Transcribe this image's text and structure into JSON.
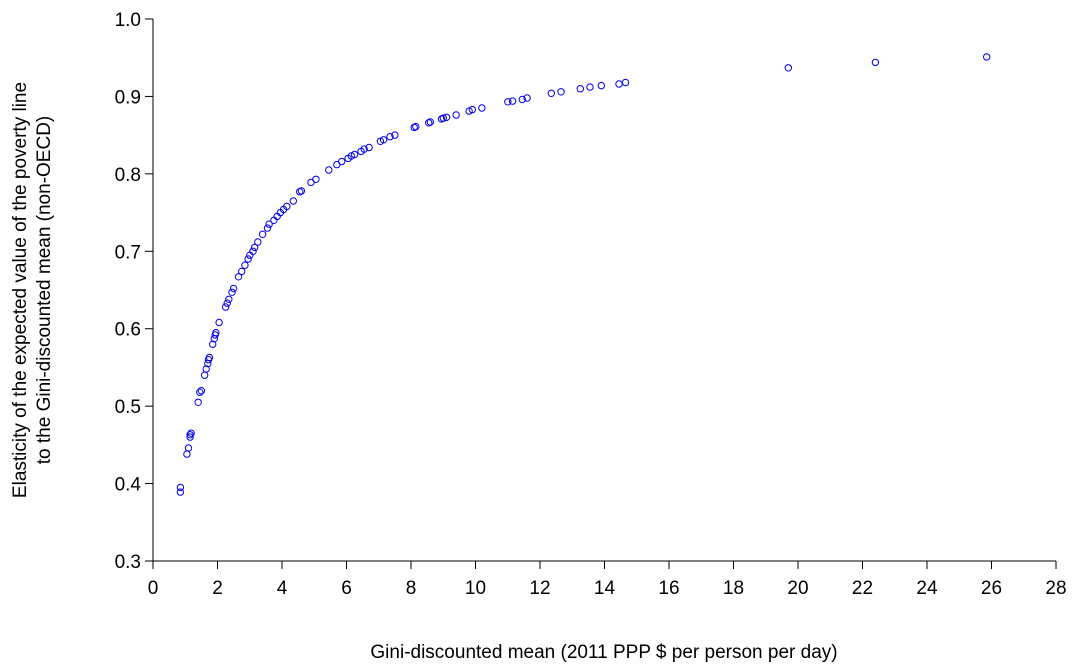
{
  "chart_data": {
    "type": "scatter",
    "title": "",
    "xlabel": "Gini-discounted mean (2011 PPP $ per person per day)",
    "ylabel": [
      "Elasticity of the expected value of the poverty line",
      "to the Gini-discounted mean (non-OECD)"
    ],
    "xlim": [
      0,
      28
    ],
    "ylim": [
      0.3,
      1.0
    ],
    "xticks": [
      "0",
      "2",
      "4",
      "6",
      "8",
      "10",
      "12",
      "14",
      "16",
      "18",
      "20",
      "22",
      "24",
      "26",
      "28"
    ],
    "yticks": [
      "0.3",
      "0.4",
      "0.5",
      "0.6",
      "0.7",
      "0.8",
      "0.9",
      "1.0"
    ],
    "grid": false,
    "marker": "open-circle",
    "colors": {
      "points": "#0000ee",
      "axes": "#000000"
    },
    "series": [
      {
        "points": [
          [
            0.85,
            0.395
          ],
          [
            0.85,
            0.389
          ],
          [
            1.05,
            0.438
          ],
          [
            1.1,
            0.446
          ],
          [
            1.15,
            0.46
          ],
          [
            1.15,
            0.463
          ],
          [
            1.18,
            0.465
          ],
          [
            1.4,
            0.505
          ],
          [
            1.45,
            0.518
          ],
          [
            1.5,
            0.52
          ],
          [
            1.6,
            0.54
          ],
          [
            1.65,
            0.548
          ],
          [
            1.7,
            0.555
          ],
          [
            1.72,
            0.56
          ],
          [
            1.75,
            0.563
          ],
          [
            1.85,
            0.58
          ],
          [
            1.9,
            0.587
          ],
          [
            1.93,
            0.592
          ],
          [
            1.95,
            0.595
          ],
          [
            2.05,
            0.608
          ],
          [
            2.25,
            0.628
          ],
          [
            2.3,
            0.633
          ],
          [
            2.35,
            0.638
          ],
          [
            2.45,
            0.647
          ],
          [
            2.5,
            0.652
          ],
          [
            2.65,
            0.667
          ],
          [
            2.75,
            0.674
          ],
          [
            2.85,
            0.682
          ],
          [
            2.95,
            0.69
          ],
          [
            3.0,
            0.695
          ],
          [
            3.1,
            0.7
          ],
          [
            3.15,
            0.705
          ],
          [
            3.25,
            0.712
          ],
          [
            3.4,
            0.722
          ],
          [
            3.55,
            0.73
          ],
          [
            3.6,
            0.735
          ],
          [
            3.75,
            0.74
          ],
          [
            3.85,
            0.745
          ],
          [
            3.95,
            0.75
          ],
          [
            4.05,
            0.754
          ],
          [
            4.15,
            0.758
          ],
          [
            4.35,
            0.765
          ],
          [
            4.55,
            0.777
          ],
          [
            4.6,
            0.778
          ],
          [
            4.9,
            0.789
          ],
          [
            5.05,
            0.793
          ],
          [
            5.45,
            0.805
          ],
          [
            5.7,
            0.812
          ],
          [
            5.85,
            0.816
          ],
          [
            6.05,
            0.82
          ],
          [
            6.15,
            0.823
          ],
          [
            6.25,
            0.825
          ],
          [
            6.45,
            0.829
          ],
          [
            6.55,
            0.832
          ],
          [
            6.7,
            0.834
          ],
          [
            7.05,
            0.842
          ],
          [
            7.15,
            0.844
          ],
          [
            7.35,
            0.848
          ],
          [
            7.5,
            0.85
          ],
          [
            8.1,
            0.86
          ],
          [
            8.15,
            0.861
          ],
          [
            8.55,
            0.866
          ],
          [
            8.6,
            0.867
          ],
          [
            8.95,
            0.871
          ],
          [
            9.0,
            0.872
          ],
          [
            9.1,
            0.873
          ],
          [
            9.4,
            0.876
          ],
          [
            9.8,
            0.881
          ],
          [
            9.9,
            0.883
          ],
          [
            10.2,
            0.885
          ],
          [
            11.0,
            0.893
          ],
          [
            11.15,
            0.894
          ],
          [
            11.45,
            0.896
          ],
          [
            11.6,
            0.898
          ],
          [
            12.35,
            0.904
          ],
          [
            12.65,
            0.906
          ],
          [
            13.25,
            0.91
          ],
          [
            13.55,
            0.912
          ],
          [
            13.9,
            0.914
          ],
          [
            14.45,
            0.916
          ],
          [
            14.65,
            0.918
          ],
          [
            19.7,
            0.937
          ],
          [
            22.4,
            0.944
          ],
          [
            25.85,
            0.951
          ]
        ]
      }
    ]
  }
}
